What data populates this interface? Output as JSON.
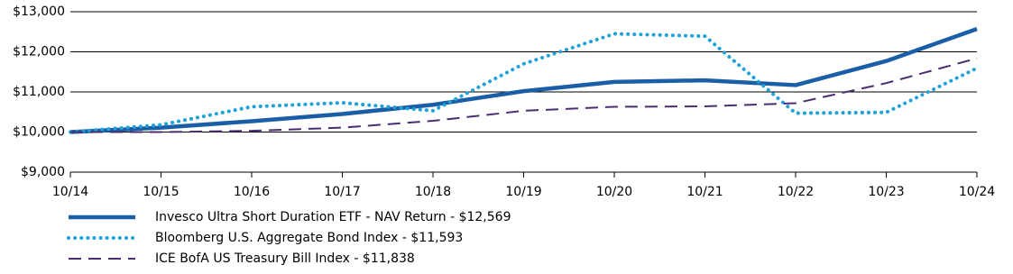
{
  "chart_data": {
    "type": "line",
    "categories": [
      "10/14",
      "10/15",
      "10/16",
      "10/17",
      "10/18",
      "10/19",
      "10/20",
      "10/21",
      "10/22",
      "10/23",
      "10/24"
    ],
    "series": [
      {
        "name": "Invesco Ultra Short Duration ETF - NAV Return - $12,569",
        "color": "#1a5ea8",
        "style": "solid",
        "values": [
          10000,
          10110,
          10270,
          10450,
          10680,
          11020,
          11250,
          11290,
          11170,
          11770,
          12569
        ]
      },
      {
        "name": "Bloomberg U.S. Aggregate Bond Index - $11,593",
        "color": "#1ea2d8",
        "style": "dotted",
        "values": [
          10000,
          10180,
          10630,
          10730,
          10530,
          11700,
          12450,
          12390,
          10470,
          10490,
          11593
        ]
      },
      {
        "name": "ICE BofA US Treasury Bill Index - $11,838",
        "color": "#4b2d73",
        "style": "dashed",
        "values": [
          10000,
          10000,
          10030,
          10110,
          10280,
          10530,
          10630,
          10640,
          10720,
          11220,
          11838
        ]
      }
    ],
    "ylim": [
      9000,
      13000
    ],
    "yticks": [
      {
        "value": 9000,
        "label": "$9,000"
      },
      {
        "value": 10000,
        "label": "$10,000"
      },
      {
        "value": 11000,
        "label": "$11,000"
      },
      {
        "value": 12000,
        "label": "$12,000"
      },
      {
        "value": 13000,
        "label": "$13,000"
      }
    ],
    "grid": true
  }
}
